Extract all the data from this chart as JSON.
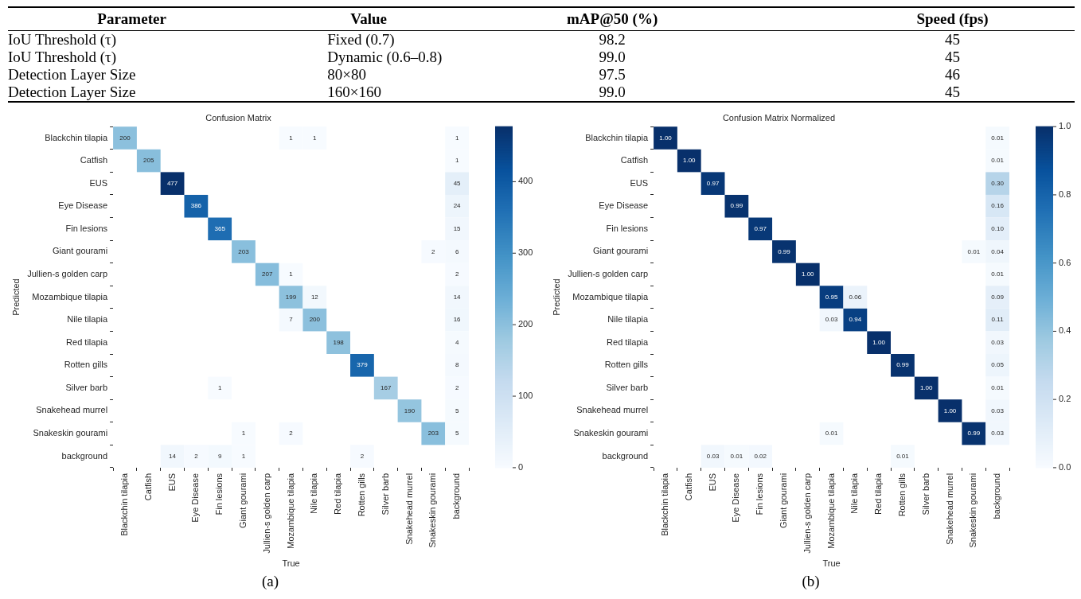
{
  "chart_data": [
    {
      "type": "other",
      "categories": [
        "Parameter",
        "Value",
        "mAP@50 (%)",
        "Speed (fps)"
      ],
      "cell_labels": [
        [
          "IoU Threshold (τ)",
          "Fixed (0.7)",
          "98.2",
          "45"
        ],
        [
          "IoU Threshold (τ)",
          "Dynamic (0.6–0.8)",
          "99.0",
          "45"
        ],
        [
          "Detection Layer Size",
          "80×80",
          "97.5",
          "46"
        ],
        [
          "Detection Layer Size",
          "160×160",
          "99.0",
          "45"
        ]
      ]
    },
    {
      "type": "heatmap",
      "data_labels": true,
      "title": "Confusion Matrix",
      "xlabel": "True",
      "ylabel": "Predicted",
      "annotations": [
        "(a)"
      ],
      "categories": [
        "Blackchin tilapia",
        "Catfish",
        "EUS",
        "Eye Disease",
        "Fin lesions",
        "Giant gourami",
        "Jullien-s golden carp",
        "Mozambique tilapia",
        "Nile tilapia",
        "Red tilapia",
        "Rotten gills",
        "Silver barb",
        "Snakehead murrel",
        "Snakeskin gourami",
        "background"
      ],
      "y_categories": [
        "Blackchin tilapia",
        "Catfish",
        "EUS",
        "Eye Disease",
        "Fin lesions",
        "Giant gourami",
        "Jullien-s golden carp",
        "Mozambique tilapia",
        "Nile tilapia",
        "Red tilapia",
        "Rotten gills",
        "Silver barb",
        "Snakehead murrel",
        "Snakeskin gourami",
        "background"
      ],
      "cells": [
        [
          200,
          null,
          null,
          null,
          null,
          null,
          null,
          1,
          1,
          null,
          null,
          null,
          null,
          null,
          1
        ],
        [
          null,
          205,
          null,
          null,
          null,
          null,
          null,
          null,
          null,
          null,
          null,
          null,
          null,
          null,
          1
        ],
        [
          null,
          null,
          477,
          null,
          null,
          null,
          null,
          null,
          null,
          null,
          null,
          null,
          null,
          null,
          45
        ],
        [
          null,
          null,
          null,
          386,
          null,
          null,
          null,
          null,
          null,
          null,
          null,
          null,
          null,
          null,
          24
        ],
        [
          null,
          null,
          null,
          null,
          365,
          null,
          null,
          null,
          null,
          null,
          null,
          null,
          null,
          null,
          15
        ],
        [
          null,
          null,
          null,
          null,
          null,
          203,
          null,
          null,
          null,
          null,
          null,
          null,
          null,
          2,
          6
        ],
        [
          null,
          null,
          null,
          null,
          null,
          null,
          207,
          1,
          null,
          null,
          null,
          null,
          null,
          null,
          2
        ],
        [
          null,
          null,
          null,
          null,
          null,
          null,
          null,
          199,
          12,
          null,
          null,
          null,
          null,
          null,
          14
        ],
        [
          null,
          null,
          null,
          null,
          null,
          null,
          null,
          7,
          200,
          null,
          null,
          null,
          null,
          null,
          16
        ],
        [
          null,
          null,
          null,
          null,
          null,
          null,
          null,
          null,
          null,
          198,
          null,
          null,
          null,
          null,
          4
        ],
        [
          null,
          null,
          null,
          null,
          null,
          null,
          null,
          null,
          null,
          null,
          379,
          null,
          null,
          null,
          8
        ],
        [
          null,
          null,
          null,
          null,
          1,
          null,
          null,
          null,
          null,
          null,
          null,
          167,
          null,
          null,
          2
        ],
        [
          null,
          null,
          null,
          null,
          null,
          null,
          null,
          null,
          null,
          null,
          null,
          null,
          190,
          null,
          5
        ],
        [
          null,
          null,
          null,
          null,
          null,
          1,
          null,
          2,
          null,
          null,
          null,
          null,
          null,
          203,
          5
        ],
        [
          null,
          null,
          14,
          2,
          9,
          1,
          null,
          null,
          null,
          null,
          2,
          null,
          null,
          null,
          null
        ]
      ],
      "clim": [
        0,
        477
      ],
      "cticks": [
        0,
        100,
        200,
        300,
        400
      ]
    },
    {
      "type": "heatmap",
      "title": "Confusion Matrix Normalized",
      "xlabel": "True",
      "ylabel": "Predicted",
      "annotations": [
        "(b)"
      ],
      "categories": [
        "Blackchin tilapia",
        "Catfish",
        "EUS",
        "Eye Disease",
        "Fin lesions",
        "Giant gourami",
        "Jullien-s golden carp",
        "Mozambique tilapia",
        "Nile tilapia",
        "Red tilapia",
        "Rotten gills",
        "Silver barb",
        "Snakehead murrel",
        "Snakeskin gourami",
        "background"
      ],
      "y_categories": [
        "Blackchin tilapia",
        "Catfish",
        "EUS",
        "Eye Disease",
        "Fin lesions",
        "Giant gourami",
        "Jullien-s golden carp",
        "Mozambique tilapia",
        "Nile tilapia",
        "Red tilapia",
        "Rotten gills",
        "Silver barb",
        "Snakehead murrel",
        "Snakeskin gourami",
        "background"
      ],
      "cells": [
        [
          1,
          null,
          null,
          null,
          null,
          null,
          null,
          null,
          null,
          null,
          null,
          null,
          null,
          null,
          0.01
        ],
        [
          null,
          1,
          null,
          null,
          null,
          null,
          null,
          null,
          null,
          null,
          null,
          null,
          null,
          null,
          0.01
        ],
        [
          null,
          null,
          0.97,
          null,
          null,
          null,
          null,
          null,
          null,
          null,
          null,
          null,
          null,
          null,
          0.3
        ],
        [
          null,
          null,
          null,
          0.99,
          null,
          null,
          null,
          null,
          null,
          null,
          null,
          null,
          null,
          null,
          0.16
        ],
        [
          null,
          null,
          null,
          null,
          0.97,
          null,
          null,
          null,
          null,
          null,
          null,
          null,
          null,
          null,
          0.1
        ],
        [
          null,
          null,
          null,
          null,
          null,
          0.99,
          null,
          null,
          null,
          null,
          null,
          null,
          null,
          0.01,
          0.04
        ],
        [
          null,
          null,
          null,
          null,
          null,
          null,
          1,
          null,
          null,
          null,
          null,
          null,
          null,
          null,
          0.01
        ],
        [
          null,
          null,
          null,
          null,
          null,
          null,
          null,
          0.95,
          0.06,
          null,
          null,
          null,
          null,
          null,
          0.09
        ],
        [
          null,
          null,
          null,
          null,
          null,
          null,
          null,
          0.03,
          0.94,
          null,
          null,
          null,
          null,
          null,
          0.11
        ],
        [
          null,
          null,
          null,
          null,
          null,
          null,
          null,
          null,
          null,
          1,
          null,
          null,
          null,
          null,
          0.03
        ],
        [
          null,
          null,
          null,
          null,
          null,
          null,
          null,
          null,
          null,
          null,
          0.99,
          null,
          null,
          null,
          0.05
        ],
        [
          null,
          null,
          null,
          null,
          null,
          null,
          null,
          null,
          null,
          null,
          null,
          1,
          null,
          null,
          0.01
        ],
        [
          null,
          null,
          null,
          null,
          null,
          null,
          null,
          null,
          null,
          null,
          null,
          null,
          1,
          null,
          0.03
        ],
        [
          null,
          null,
          null,
          null,
          null,
          null,
          null,
          0.01,
          null,
          null,
          null,
          null,
          null,
          0.99,
          0.03
        ],
        [
          null,
          null,
          0.03,
          0.01,
          0.02,
          null,
          null,
          null,
          null,
          null,
          0.01,
          null,
          null,
          null,
          null
        ]
      ],
      "cell_labels": [
        [
          "1.00",
          null,
          null,
          null,
          null,
          null,
          null,
          null,
          null,
          null,
          null,
          null,
          null,
          null,
          "0.01"
        ],
        [
          null,
          "1.00",
          null,
          null,
          null,
          null,
          null,
          null,
          null,
          null,
          null,
          null,
          null,
          null,
          "0.01"
        ],
        [
          null,
          null,
          "0.97",
          null,
          null,
          null,
          null,
          null,
          null,
          null,
          null,
          null,
          null,
          null,
          "0.30"
        ],
        [
          null,
          null,
          null,
          "0.99",
          null,
          null,
          null,
          null,
          null,
          null,
          null,
          null,
          null,
          null,
          "0.16"
        ],
        [
          null,
          null,
          null,
          null,
          "0.97",
          null,
          null,
          null,
          null,
          null,
          null,
          null,
          null,
          null,
          "0.10"
        ],
        [
          null,
          null,
          null,
          null,
          null,
          "0.99",
          null,
          null,
          null,
          null,
          null,
          null,
          null,
          "0.01",
          "0.04"
        ],
        [
          null,
          null,
          null,
          null,
          null,
          null,
          "1.00",
          null,
          null,
          null,
          null,
          null,
          null,
          null,
          "0.01"
        ],
        [
          null,
          null,
          null,
          null,
          null,
          null,
          null,
          "0.95",
          "0.06",
          null,
          null,
          null,
          null,
          null,
          "0.09"
        ],
        [
          null,
          null,
          null,
          null,
          null,
          null,
          null,
          "0.03",
          "0.94",
          null,
          null,
          null,
          null,
          null,
          "0.11"
        ],
        [
          null,
          null,
          null,
          null,
          null,
          null,
          null,
          null,
          null,
          "1.00",
          null,
          null,
          null,
          null,
          "0.03"
        ],
        [
          null,
          null,
          null,
          null,
          null,
          null,
          null,
          null,
          null,
          null,
          "0.99",
          null,
          null,
          null,
          "0.05"
        ],
        [
          null,
          null,
          null,
          null,
          null,
          null,
          null,
          null,
          null,
          null,
          null,
          "1.00",
          null,
          null,
          "0.01"
        ],
        [
          null,
          null,
          null,
          null,
          null,
          null,
          null,
          null,
          null,
          null,
          null,
          null,
          "1.00",
          null,
          "0.03"
        ],
        [
          null,
          null,
          null,
          null,
          null,
          null,
          null,
          "0.01",
          null,
          null,
          null,
          null,
          null,
          "0.99",
          "0.03"
        ],
        [
          null,
          null,
          "0.03",
          "0.01",
          "0.02",
          null,
          null,
          null,
          null,
          null,
          "0.01",
          null,
          null,
          null,
          null
        ]
      ],
      "clim": [
        0,
        1
      ],
      "cticks": [
        {
          "value": 0,
          "label": "0.0"
        },
        {
          "value": 0.2,
          "label": "0.2"
        },
        {
          "value": 0.4,
          "label": "0.4"
        },
        {
          "value": 0.6,
          "label": "0.6"
        },
        {
          "value": 0.8,
          "label": "0.8"
        },
        {
          "value": 1,
          "label": "1.0"
        }
      ]
    }
  ]
}
